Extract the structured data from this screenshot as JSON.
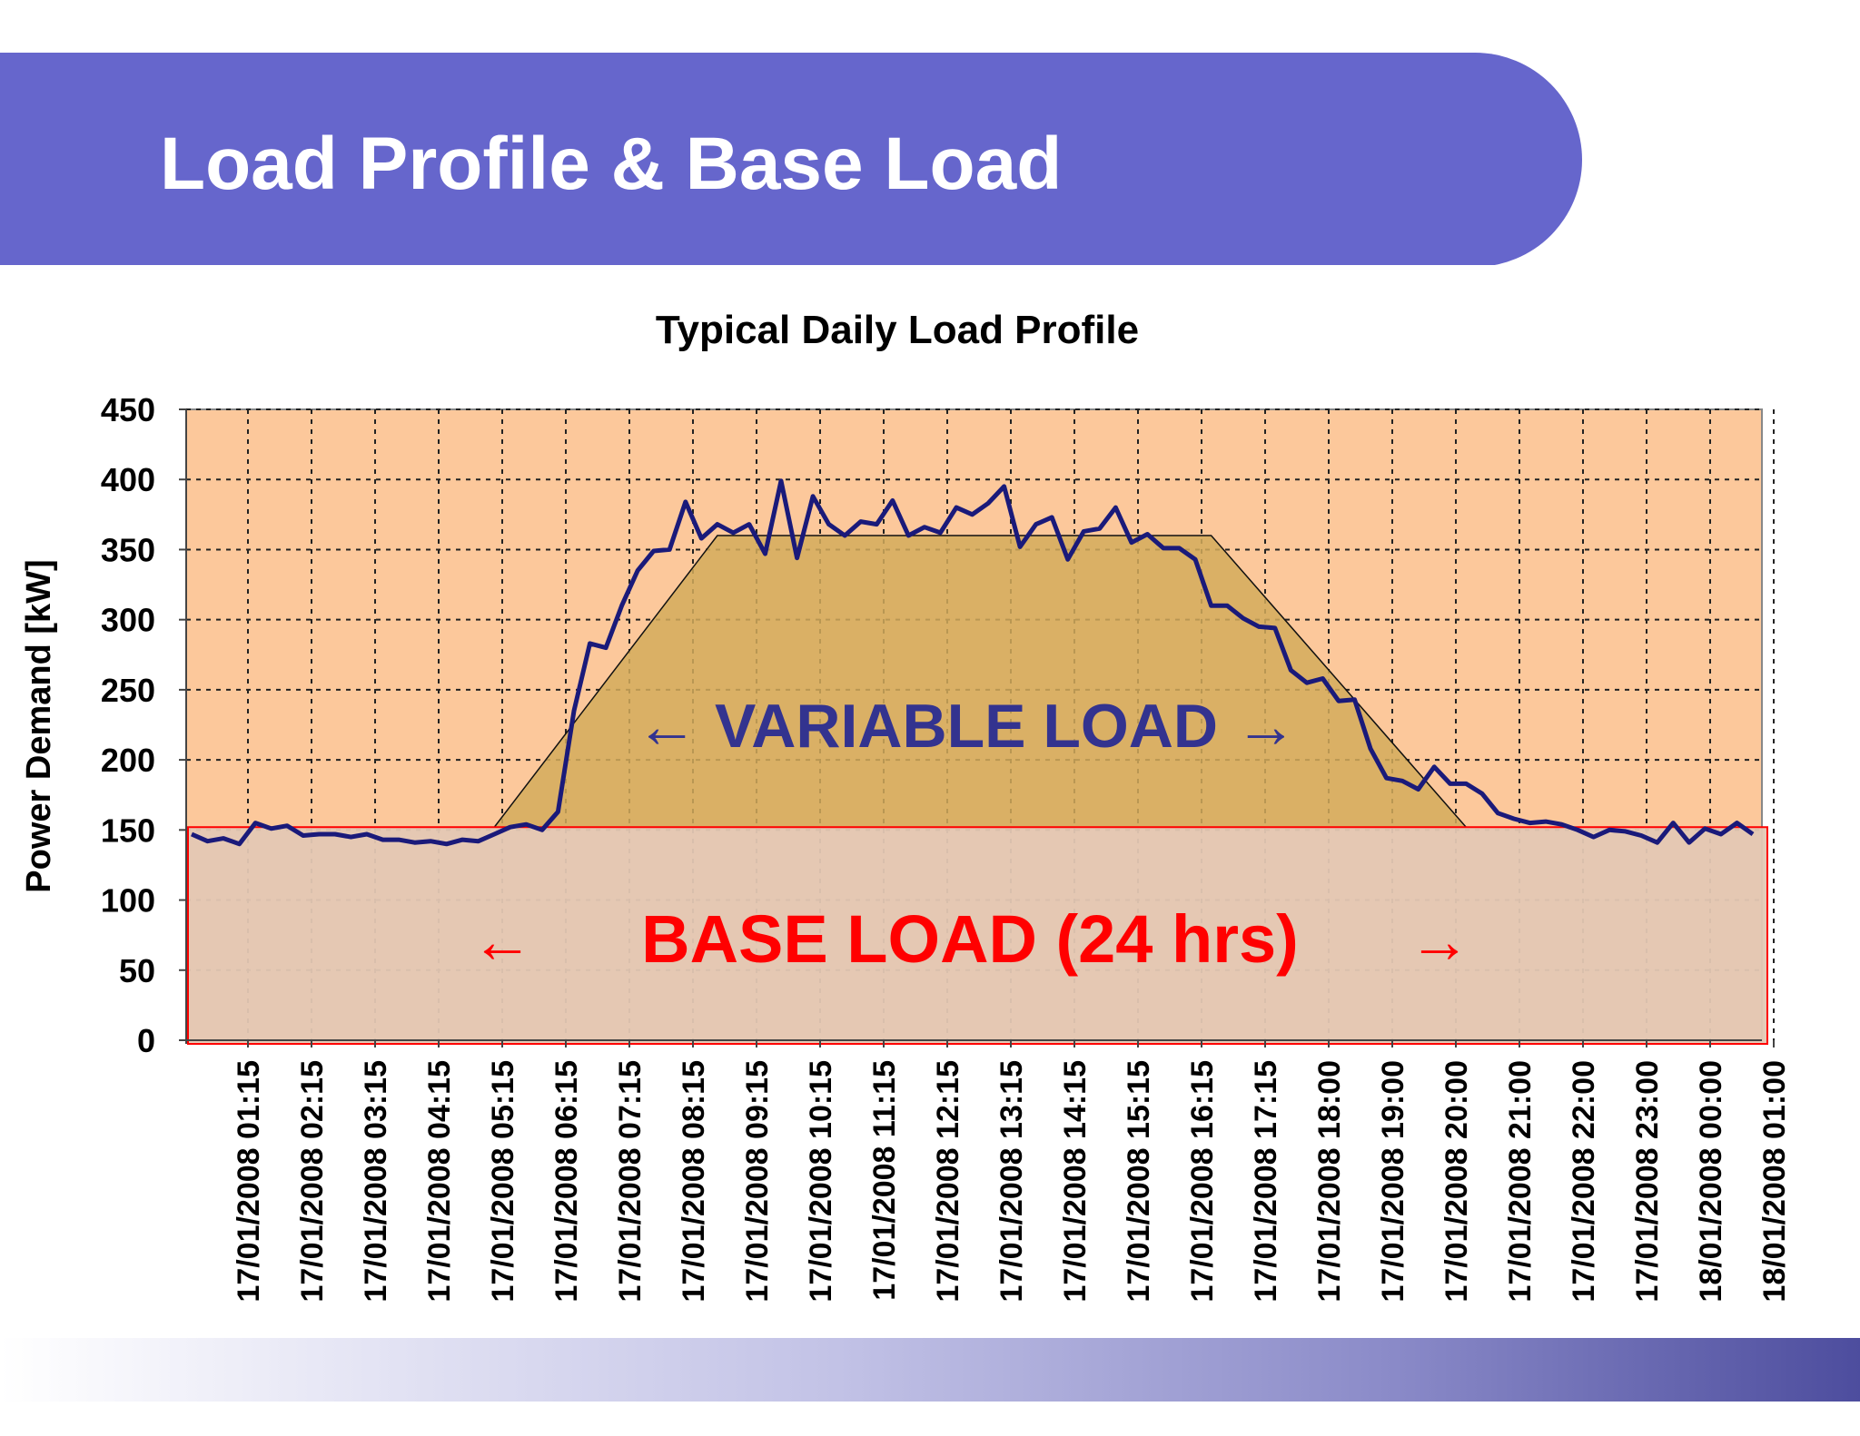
{
  "slide": {
    "title": "Load Profile & Base Load"
  },
  "colors": {
    "banner": "#6666cc",
    "plot_background": "#fcc89b",
    "base_load_fill": "#e4c8b4",
    "variable_load_fill": "#d4ac5c",
    "series_line": "#1a1a7a",
    "variable_label": "#33338f",
    "base_label": "#ff0000"
  },
  "chart_data": {
    "type": "line",
    "title": "Typical Daily Load Profile",
    "ylabel": "Power Demand  [kW]",
    "xlabel": "",
    "ylim": [
      0,
      450
    ],
    "yticks": [
      0,
      50,
      100,
      150,
      200,
      250,
      300,
      350,
      400,
      450
    ],
    "grid": true,
    "x_tick_labels": [
      "17/01/2008 01:15",
      "17/01/2008 02:15",
      "17/01/2008 03:15",
      "17/01/2008 04:15",
      "17/01/2008 05:15",
      "17/01/2008 06:15",
      "17/01/2008 07:15",
      "17/01/2008 08:15",
      "17/01/2008 09:15",
      "17/01/2008 10:15",
      "17/01/2008 11:15",
      "17/01/2008 12:15",
      "17/01/2008 13:15",
      "17/01/2008 14:15",
      "17/01/2008 15:15",
      "17/01/2008 16:15",
      "17/01/2008 17:15",
      "17/01/2008 18:00",
      "17/01/2008 19:00",
      "17/01/2008 20:00",
      "17/01/2008 21:00",
      "17/01/2008 22:00",
      "17/01/2008 23:00",
      "18/01/2008 00:00",
      "18/01/2008 01:00"
    ],
    "series": [
      {
        "values": [
          147,
          142,
          144,
          140,
          155,
          151,
          153,
          146,
          147,
          147,
          145,
          147,
          143,
          143,
          141,
          142,
          140,
          143,
          142,
          147,
          152,
          154,
          150,
          163,
          235,
          283,
          280,
          310,
          335,
          349,
          350,
          384,
          358,
          368,
          362,
          368,
          347,
          399,
          344,
          388,
          368,
          360,
          370,
          368,
          385,
          360,
          366,
          362,
          380,
          375,
          383,
          395,
          352,
          368,
          373,
          343,
          363,
          365,
          380,
          355,
          361,
          351,
          351,
          343,
          310,
          310,
          301,
          295,
          294,
          264,
          255,
          258,
          242,
          243,
          208,
          187,
          185,
          179,
          195,
          183,
          183,
          176,
          162,
          158,
          155,
          156,
          154,
          150,
          145,
          150,
          149,
          146,
          141,
          155,
          141,
          151,
          147,
          155,
          147
        ]
      }
    ],
    "base_load": {
      "value": 152,
      "label_left": "←",
      "label": "BASE LOAD (24 hrs)",
      "label_right": "→"
    },
    "variable_load": {
      "label": "← VARIABLE LOAD →",
      "level": 360,
      "base_start_index": 19,
      "plateau_start_index": 33,
      "plateau_end_index": 64,
      "base_end_index": 80
    }
  }
}
